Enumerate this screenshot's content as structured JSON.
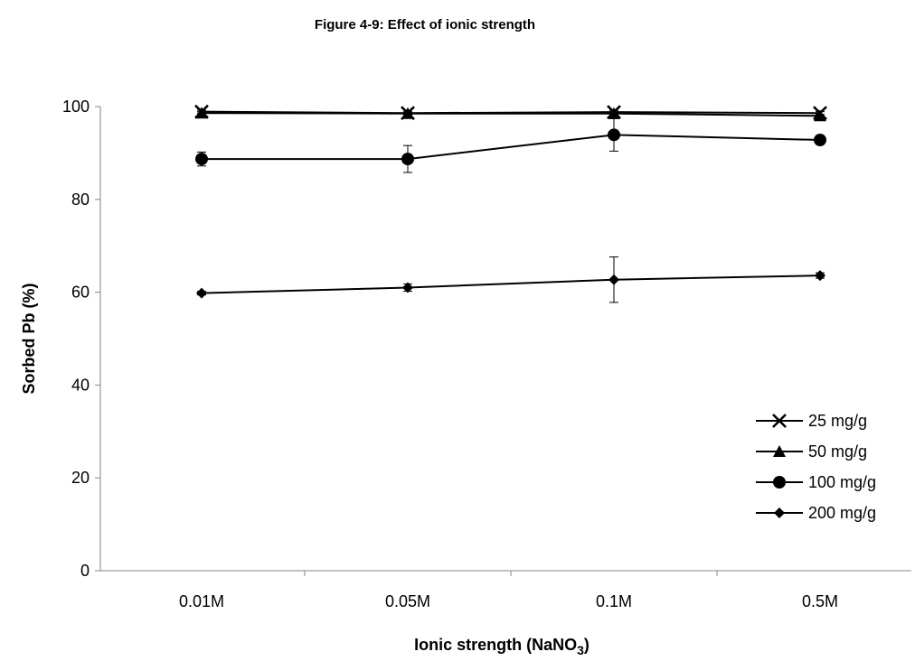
{
  "chart_data": {
    "type": "line",
    "title": "Figure 4-9: Effect of ionic strength",
    "xlabel": "Ionic strength (NaNO",
    "xlabel_sub": "3",
    "xlabel_end": ")",
    "ylabel": "Sorbed Pb (%)",
    "categories": [
      "0.01M",
      "0.05M",
      "0.1M",
      "0.5M"
    ],
    "ylim": [
      0,
      100
    ],
    "yticks": [
      0,
      20,
      40,
      60,
      80,
      100
    ],
    "grid": false,
    "legend_position": "right",
    "series": [
      {
        "name": "25 mg/g",
        "marker": "x",
        "values": [
          98.9,
          98.6,
          98.8,
          98.6
        ],
        "errors": [
          0.3,
          0.3,
          0.3,
          0.3
        ]
      },
      {
        "name": "50 mg/g",
        "marker": "triangle",
        "values": [
          98.6,
          98.5,
          98.5,
          98.0
        ],
        "errors": [
          0.3,
          0.3,
          0.3,
          0.3
        ]
      },
      {
        "name": "100 mg/g",
        "marker": "circle",
        "values": [
          88.7,
          88.7,
          93.9,
          92.8
        ],
        "errors": [
          1.5,
          2.9,
          3.5,
          0.5
        ]
      },
      {
        "name": "200 mg/g",
        "marker": "diamond",
        "values": [
          59.8,
          61.0,
          62.7,
          63.6
        ],
        "errors": [
          0.4,
          0.8,
          4.9,
          0.6
        ]
      }
    ],
    "color": "#000000"
  }
}
